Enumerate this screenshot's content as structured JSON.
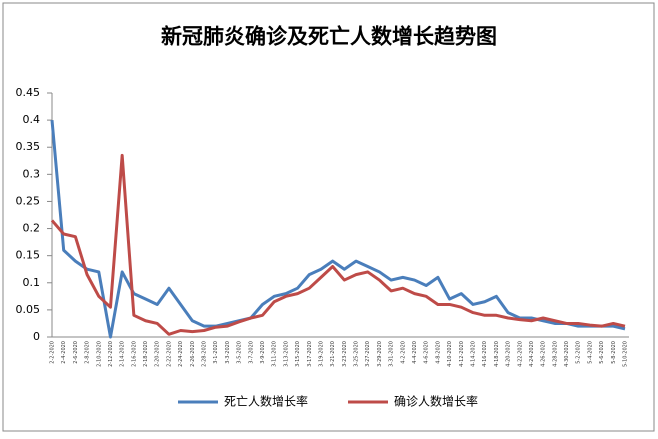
{
  "chart_data": {
    "type": "line",
    "title": "新冠肺炎确诊及死亡人数增长趋势图",
    "categories": [
      "2-2-2020",
      "2-4-2020",
      "2-6-2020",
      "2-8-2020",
      "2-10-2020",
      "2-12-2020",
      "2-14-2020",
      "2-16-2020",
      "2-18-2020",
      "2-20-2020",
      "2-22-2020",
      "2-24-2020",
      "2-26-2020",
      "2-28-2020",
      "3-1-2020",
      "3-3-2020",
      "3-5-2020",
      "3-7-2020",
      "3-9-2020",
      "3-11-2020",
      "3-13-2020",
      "3-15-2020",
      "3-17-2020",
      "3-19-2020",
      "3-21-2020",
      "3-23-2020",
      "3-25-2020",
      "3-27-2020",
      "3-29-2020",
      "3-31-2020",
      "4-2-2020",
      "4-4-2020",
      "4-6-2020",
      "4-8-2020",
      "4-10-2020",
      "4-12-2020",
      "4-14-2020",
      "4-16-2020",
      "4-18-2020",
      "4-20-2020",
      "4-22-2020",
      "4-24-2020",
      "4-26-2020",
      "4-28-2020",
      "4-30-2020",
      "5-2-2020",
      "5-4-2020",
      "5-6-2020",
      "5-8-2020",
      "5-10-2020"
    ],
    "series": [
      {
        "name": "死亡人数增长率",
        "color": "#4a7ebb",
        "values": [
          0.4,
          0.16,
          0.14,
          0.125,
          0.12,
          0.0,
          0.12,
          0.08,
          0.07,
          0.06,
          0.09,
          0.06,
          0.03,
          0.02,
          0.02,
          0.025,
          0.03,
          0.035,
          0.06,
          0.075,
          0.08,
          0.09,
          0.115,
          0.125,
          0.14,
          0.125,
          0.14,
          0.13,
          0.12,
          0.105,
          0.11,
          0.105,
          0.095,
          0.11,
          0.07,
          0.08,
          0.06,
          0.065,
          0.075,
          0.045,
          0.035,
          0.035,
          0.03,
          0.025,
          0.025,
          0.02,
          0.02,
          0.02,
          0.02,
          0.015
        ]
      },
      {
        "name": "确诊人数增长率",
        "color": "#be4b48",
        "values": [
          0.215,
          0.19,
          0.185,
          0.115,
          0.075,
          0.055,
          0.335,
          0.04,
          0.03,
          0.025,
          0.005,
          0.012,
          0.01,
          0.012,
          0.018,
          0.02,
          0.028,
          0.035,
          0.04,
          0.065,
          0.075,
          0.08,
          0.09,
          0.11,
          0.13,
          0.105,
          0.115,
          0.12,
          0.105,
          0.085,
          0.09,
          0.08,
          0.075,
          0.06,
          0.06,
          0.055,
          0.045,
          0.04,
          0.04,
          0.035,
          0.032,
          0.03,
          0.035,
          0.03,
          0.025,
          0.025,
          0.022,
          0.02,
          0.025,
          0.02
        ]
      }
    ],
    "ylim": [
      0,
      0.45
    ],
    "yticks": [
      0,
      0.05,
      0.1,
      0.15,
      0.2,
      0.25,
      0.3,
      0.35,
      0.4,
      0.45
    ],
    "legend": "bottom"
  }
}
